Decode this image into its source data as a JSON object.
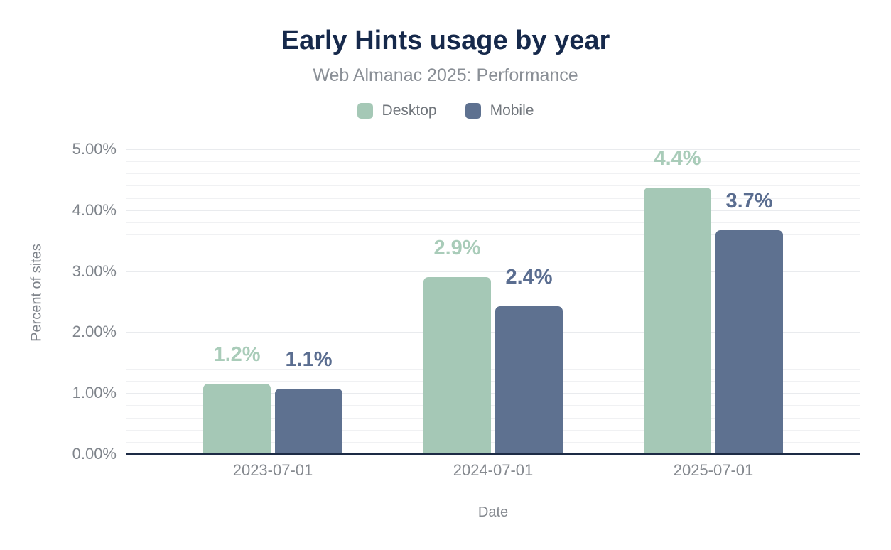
{
  "chart_data": {
    "type": "bar",
    "title": "Early Hints usage by year",
    "subtitle": "Web Almanac 2025: Performance",
    "xlabel": "Date",
    "ylabel": "Percent of sites",
    "categories": [
      "2023-07-01",
      "2024-07-01",
      "2025-07-01"
    ],
    "series": [
      {
        "name": "Desktop",
        "color": "#a5c8b6",
        "label_color": "#a9ccb9",
        "values": [
          1.15,
          2.9,
          4.37
        ],
        "labels": [
          "1.2%",
          "2.9%",
          "4.4%"
        ]
      },
      {
        "name": "Mobile",
        "color": "#5e7190",
        "label_color": "#5a6d90",
        "values": [
          1.07,
          2.43,
          3.67
        ],
        "labels": [
          "1.1%",
          "2.4%",
          "3.7%"
        ]
      }
    ],
    "ylim": [
      0,
      5
    ],
    "yticks": [
      "0.00%",
      "1.00%",
      "2.00%",
      "3.00%",
      "4.00%",
      "5.00%"
    ],
    "grid": "horizontal minor gridlines every 0.2%",
    "legend_position": "top-center"
  },
  "styles": {
    "title_color": "#16294b",
    "subtitle_color": "#8a8f96",
    "legend_text_color": "#71767c",
    "axis_text_color": "#7f848b",
    "baseline_color": "#1d2b45",
    "gridline_minor_color": "#f0f1f3",
    "gridline_major_color": "#e9ebee",
    "background": "#ffffff"
  }
}
